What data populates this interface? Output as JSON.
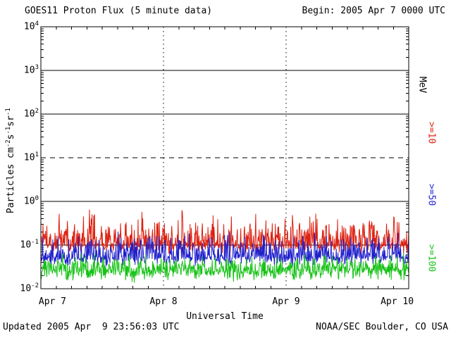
{
  "header": {
    "title": "GOES11 Proton Flux (5 minute data)",
    "begin": "Begin: 2005 Apr 7 0000 UTC"
  },
  "footer": {
    "updated": "Updated 2005 Apr  9 23:56:03 UTC",
    "credit": "NOAA/SEC Boulder, CO USA"
  },
  "axes": {
    "y_label_segments": [
      {
        "text": "Particles cm",
        "sup": false
      },
      {
        "text": "-2",
        "sup": true
      },
      {
        "text": "s",
        "sup": false
      },
      {
        "text": "-1",
        "sup": true
      },
      {
        "text": "sr",
        "sup": false
      },
      {
        "text": "-1",
        "sup": true
      }
    ]
  },
  "right_axis": {
    "labels": [
      {
        "text": "MeV",
        "color": "#000000"
      },
      {
        "text": ">=10",
        "color": "#dd2010"
      },
      {
        "text": ">=50",
        "color": "#2020cc"
      },
      {
        "text": ">=100",
        "color": "#16c216"
      }
    ]
  },
  "chart_data": {
    "type": "line",
    "title": "GOES11 Proton Flux (5 minute data)",
    "xlabel": "Universal Time",
    "ylabel": "Particles cm^-2 s^-1 sr^-1",
    "y_scale": "log10",
    "ylim": [
      0.01,
      10000
    ],
    "y_tick_exponents": [
      4,
      3,
      2,
      1,
      0,
      -1,
      -2
    ],
    "x_tick_labels": [
      "Apr 7",
      "Apr 8",
      "Apr 9",
      "Apr 10"
    ],
    "x_span_days": 3,
    "cadence_minutes": 5,
    "solid_gridlines": [
      1000,
      100,
      1,
      0.1
    ],
    "dashed_threshold_line": 10,
    "day_boundary_dotted_lines": [
      "Apr 8",
      "Apr 9"
    ],
    "legend_position": "right",
    "series": [
      {
        "name": ">=10 MeV",
        "color": "#dd2010",
        "baseline_flux": 0.105,
        "typical_min": 0.055,
        "typical_max": 0.92
      },
      {
        "name": ">=50 MeV",
        "color": "#2020cc",
        "baseline_flux": 0.055,
        "typical_min": 0.027,
        "typical_max": 0.28
      },
      {
        "name": ">=100 MeV",
        "color": "#16c216",
        "baseline_flux": 0.027,
        "typical_min": 0.012,
        "typical_max": 0.08
      }
    ]
  }
}
